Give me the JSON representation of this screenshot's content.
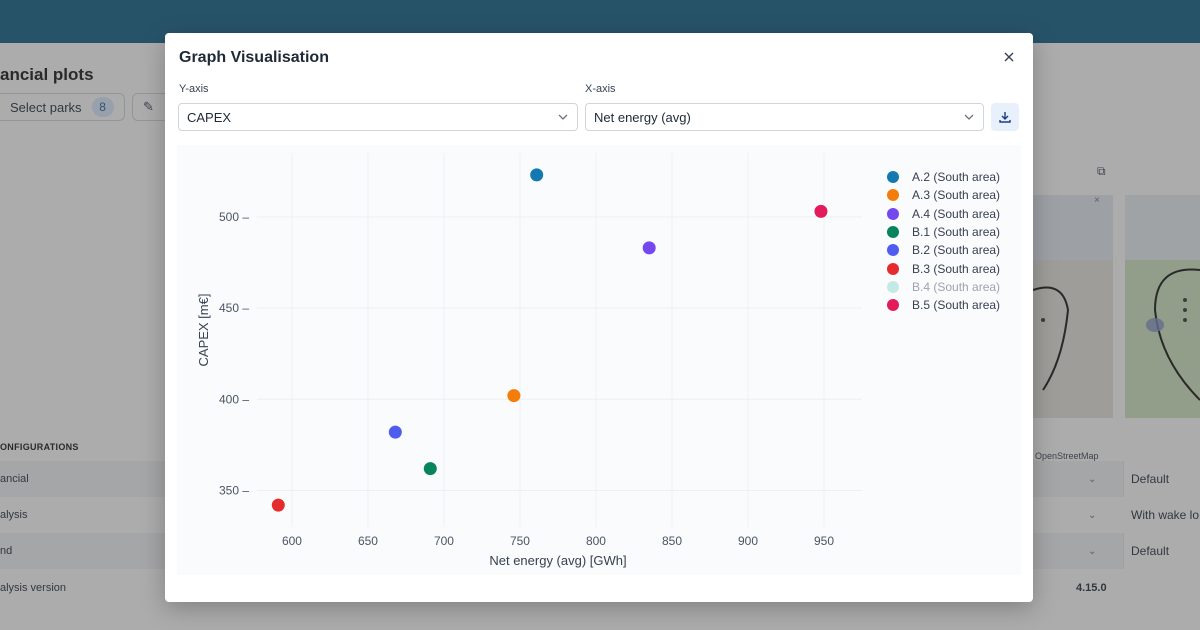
{
  "background": {
    "page_title": "ancial plots",
    "select_parks_label": "Select parks",
    "select_parks_count": "8",
    "configurations_heading": "ONFIGURATIONS",
    "rows": [
      {
        "label": "ancial",
        "value": "Default"
      },
      {
        "label": "alysis",
        "value": "With wake lo"
      },
      {
        "label": "nd",
        "value": "Default"
      },
      {
        "label": "alysis version",
        "value": "4.15.0"
      }
    ],
    "map_attribution": "OpenStreetMap"
  },
  "modal": {
    "title": "Graph Visualisation",
    "close_icon": "close-icon",
    "y_axis_label": "Y-axis",
    "y_axis_value": "CAPEX",
    "x_axis_label": "X-axis",
    "x_axis_value": "Net energy (avg)",
    "download_icon": "download-icon"
  },
  "chart_data": {
    "type": "scatter",
    "xlabel": "Net energy (avg) [GWh]",
    "ylabel": "CAPEX [m€]",
    "xlim": [
      577,
      975
    ],
    "ylim": [
      330,
      535
    ],
    "xticks": [
      600,
      650,
      700,
      750,
      800,
      850,
      900,
      950
    ],
    "yticks": [
      350,
      400,
      450,
      500
    ],
    "grid": true,
    "legend_position": "right",
    "series": [
      {
        "name": "A.2 (South area)",
        "color": "#1479b0",
        "x": 761,
        "y": 523,
        "visible": true
      },
      {
        "name": "A.3 (South area)",
        "color": "#f47c08",
        "x": 746,
        "y": 402,
        "visible": true
      },
      {
        "name": "A.4 (South area)",
        "color": "#7547ee",
        "x": 835,
        "y": 483,
        "visible": true
      },
      {
        "name": "B.1 (South area)",
        "color": "#08845b",
        "x": 691,
        "y": 362,
        "visible": true
      },
      {
        "name": "B.2 (South area)",
        "color": "#4f5cf0",
        "x": 668,
        "y": 382,
        "visible": true
      },
      {
        "name": "B.3 (South area)",
        "color": "#e52b2b",
        "x": 591,
        "y": 342,
        "visible": true
      },
      {
        "name": "B.4 (South area)",
        "color": "#8fd9cf",
        "visible": false
      },
      {
        "name": "B.5 (South area)",
        "color": "#e31b5a",
        "x": 948,
        "y": 503,
        "visible": true
      }
    ]
  }
}
